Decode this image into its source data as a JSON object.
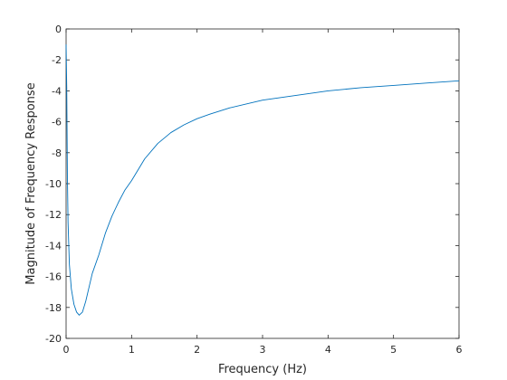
{
  "chart_data": {
    "type": "line",
    "title": "",
    "xlabel": "Frequency (Hz)",
    "ylabel": "Magnitude of Frequency Response",
    "xlim": [
      0,
      6
    ],
    "ylim": [
      -20,
      0
    ],
    "xticks": [
      0,
      1,
      2,
      3,
      4,
      5,
      6
    ],
    "yticks": [
      0,
      -2,
      -4,
      -6,
      -8,
      -10,
      -12,
      -14,
      -16,
      -18,
      -20
    ],
    "grid": false,
    "legend": "none",
    "series": [
      {
        "color": "#0072bd",
        "x": [
          0,
          0.01,
          0.02,
          0.03,
          0.05,
          0.08,
          0.12,
          0.16,
          0.2,
          0.25,
          0.3,
          0.35,
          0.4,
          0.5,
          0.6,
          0.7,
          0.8,
          0.9,
          1.0,
          1.2,
          1.4,
          1.6,
          1.8,
          2.0,
          2.2,
          2.5,
          3.0,
          3.5,
          4.0,
          4.5,
          5.0,
          5.5,
          6.0
        ],
        "y": [
          -1,
          -3.8,
          -9.5,
          -12.5,
          -15.2,
          -16.8,
          -17.8,
          -18.3,
          -18.5,
          -18.3,
          -17.6,
          -16.7,
          -15.8,
          -14.6,
          -13.2,
          -12.1,
          -11.2,
          -10.4,
          -9.8,
          -8.4,
          -7.4,
          -6.7,
          -6.2,
          -5.8,
          -5.5,
          -5.1,
          -4.6,
          -4.3,
          -4.0,
          -3.8,
          -3.65,
          -3.5,
          -3.35
        ]
      }
    ]
  }
}
